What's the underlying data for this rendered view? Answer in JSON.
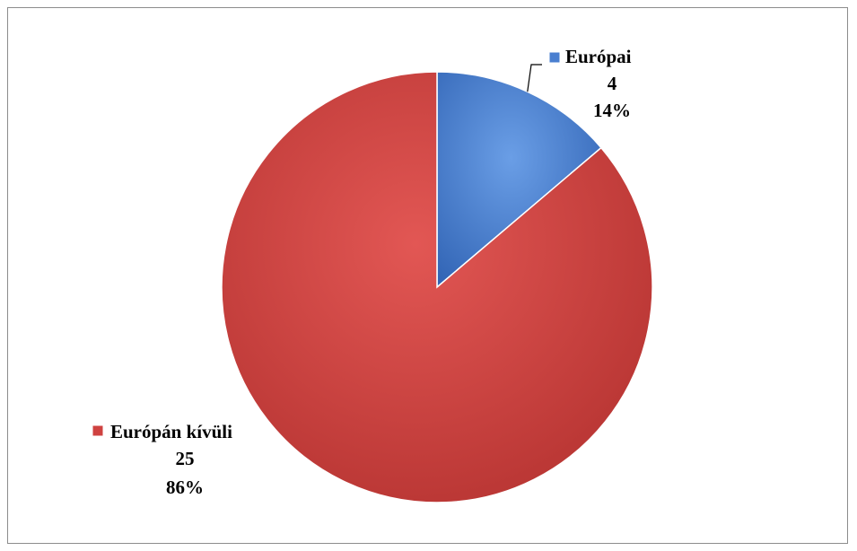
{
  "chart_data": {
    "type": "pie",
    "title": "",
    "slices": [
      {
        "name": "Európai",
        "value": 4,
        "percent_label": "14%",
        "value_label": "4",
        "color": "#4a7fd0"
      },
      {
        "name": "Európán kívüli",
        "value": 25,
        "percent_label": "86%",
        "value_label": "25",
        "color": "#cf4240"
      }
    ],
    "legend": "none",
    "data_labels": "outside, with category name, value and percent"
  }
}
